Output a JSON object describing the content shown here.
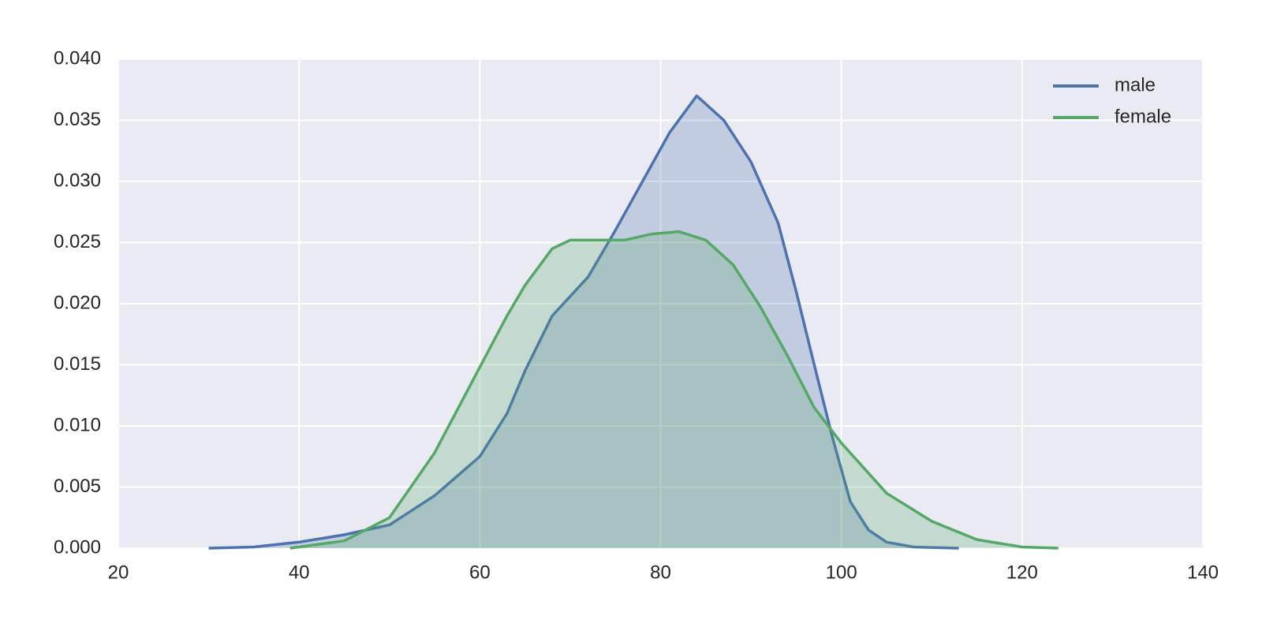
{
  "chart_data": {
    "type": "kde",
    "series": [
      {
        "name": "male",
        "color": "#4c72b0",
        "x": [
          30,
          35,
          40,
          45,
          50,
          55,
          60,
          63,
          65,
          68,
          72,
          75,
          78,
          81,
          84,
          87,
          90,
          93,
          95,
          97,
          99,
          101,
          103,
          105,
          108,
          113
        ],
        "values": [
          0,
          0.0001,
          0.0005,
          0.0011,
          0.0019,
          0.0043,
          0.0075,
          0.011,
          0.0145,
          0.019,
          0.0222,
          0.026,
          0.03,
          0.034,
          0.037,
          0.035,
          0.0316,
          0.0266,
          0.021,
          0.015,
          0.0091,
          0.0038,
          0.0015,
          0.0005,
          0.0001,
          0
        ]
      },
      {
        "name": "female",
        "color": "#55a868",
        "x": [
          39,
          45,
          50,
          55,
          60,
          63,
          65,
          68,
          70,
          73,
          76,
          79,
          82,
          85,
          88,
          91,
          94,
          97,
          100,
          105,
          110,
          115,
          120,
          124
        ],
        "values": [
          0,
          0.0006,
          0.0025,
          0.0078,
          0.0148,
          0.019,
          0.0215,
          0.0245,
          0.0252,
          0.0252,
          0.0252,
          0.0257,
          0.0259,
          0.0252,
          0.0232,
          0.0198,
          0.0158,
          0.0115,
          0.0086,
          0.0045,
          0.0022,
          0.0007,
          0.0001,
          0
        ]
      }
    ],
    "xlim": [
      20,
      140
    ],
    "xticks": [
      20,
      40,
      60,
      80,
      100,
      120,
      140
    ],
    "ylim": [
      0,
      0.04
    ],
    "yticks": [
      {
        "value": 0,
        "label": "0.000"
      },
      {
        "value": 0.005,
        "label": "0.005"
      },
      {
        "value": 0.01,
        "label": "0.010"
      },
      {
        "value": 0.015,
        "label": "0.015"
      },
      {
        "value": 0.02,
        "label": "0.020"
      },
      {
        "value": 0.025,
        "label": "0.025"
      },
      {
        "value": 0.03,
        "label": "0.030"
      },
      {
        "value": 0.035,
        "label": "0.035"
      },
      {
        "value": 0.04,
        "label": "0.040"
      }
    ],
    "grid": true,
    "legend": "upper right"
  }
}
